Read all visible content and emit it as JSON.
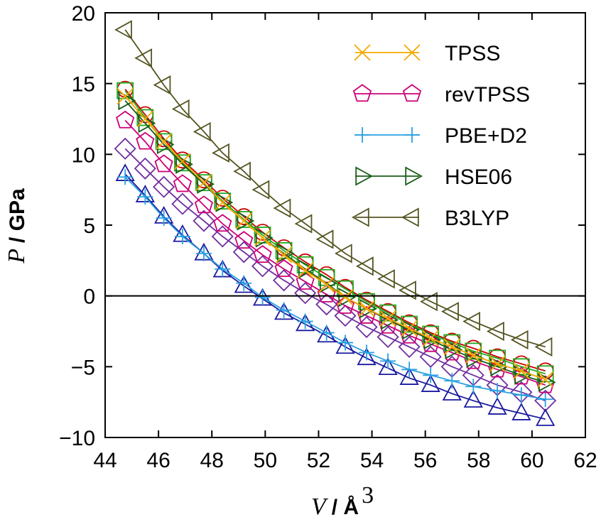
{
  "chart_data": {
    "type": "line",
    "title": "",
    "xlabel": {
      "var": "V",
      "unit": "/ Å",
      "sup": "3"
    },
    "ylabel": {
      "var": "P",
      "unit": "/ GPa"
    },
    "xlim": [
      44,
      62
    ],
    "ylim": [
      -10,
      20
    ],
    "xticks": [
      44,
      46,
      48,
      50,
      52,
      54,
      56,
      58,
      60,
      62
    ],
    "yticks": [
      -10,
      -5,
      0,
      5,
      10,
      15,
      20
    ],
    "xtick_labels": [
      "44",
      "46",
      "48",
      "50",
      "52",
      "54",
      "56",
      "58",
      "60",
      "62"
    ],
    "ytick_labels": [
      "−10",
      "−5",
      "0",
      "5",
      "10",
      "15",
      "20"
    ],
    "zero_line": true,
    "legend_position": "top-right",
    "x": [
      44.75,
      45.5,
      46.2,
      46.9,
      47.7,
      48.4,
      49.2,
      49.9,
      50.7,
      51.5,
      52.3,
      53.0,
      53.8,
      54.6,
      55.4,
      56.2,
      57.0,
      57.8,
      58.7,
      59.6,
      60.5
    ],
    "series": [
      {
        "name": "TPSS",
        "marker": "x",
        "color": "#f5a800",
        "values": [
          14.1,
          12.5,
          10.9,
          9.5,
          8.0,
          6.6,
          5.3,
          4.1,
          2.9,
          1.8,
          0.8,
          -0.1,
          -0.9,
          -1.6,
          -2.3,
          -3.0,
          -3.6,
          -4.2,
          -4.8,
          -5.3,
          -5.9
        ],
        "in_legend": true
      },
      {
        "name": "revTPSS",
        "marker": "pentagon",
        "color": "#cc0077",
        "values": [
          12.4,
          10.9,
          9.3,
          7.9,
          6.4,
          5.1,
          3.9,
          2.9,
          1.9,
          1.0,
          0.1,
          -0.7,
          -1.4,
          -2.1,
          -2.8,
          -3.4,
          -4.0,
          -4.6,
          -5.2,
          -5.7,
          -6.3
        ],
        "in_legend": true
      },
      {
        "name": "PBE+D2",
        "marker": "plus",
        "color": "#2aa0e0",
        "values": [
          8.4,
          7.0,
          5.5,
          4.2,
          3.0,
          1.9,
          0.9,
          -0.1,
          -1.0,
          -1.8,
          -2.6,
          -3.3,
          -4.0,
          -4.6,
          -5.2,
          -5.6,
          -6.0,
          -6.4,
          -6.7,
          -7.0,
          -7.3
        ],
        "in_legend": true
      },
      {
        "name": "HSE06",
        "marker": "triangle-right",
        "color": "#1a5c1a",
        "values": [
          13.8,
          12.2,
          10.7,
          9.3,
          7.9,
          6.6,
          5.3,
          4.1,
          3.0,
          1.9,
          0.9,
          -0.1,
          -0.9,
          -1.7,
          -2.4,
          -3.1,
          -3.8,
          -4.4,
          -5.0,
          -5.6,
          -6.1
        ],
        "in_legend": true
      },
      {
        "name": "B3LYP",
        "marker": "triangle-left",
        "color": "#555522",
        "values": [
          18.8,
          16.8,
          14.9,
          13.2,
          11.6,
          10.1,
          8.8,
          7.5,
          6.2,
          5.1,
          4.0,
          3.0,
          2.1,
          1.2,
          0.4,
          -0.4,
          -1.1,
          -1.8,
          -2.5,
          -3.1,
          -3.6
        ],
        "in_legend": true
      },
      {
        "name": "",
        "marker": "circle",
        "color": "#cc0000",
        "values": [
          14.6,
          12.8,
          11.1,
          9.6,
          8.2,
          6.9,
          5.6,
          4.5,
          3.4,
          2.4,
          1.5,
          0.6,
          -0.3,
          -1.1,
          -1.9,
          -2.6,
          -3.2,
          -3.7,
          -4.3,
          -4.8,
          -5.3
        ],
        "in_legend": false
      },
      {
        "name": "",
        "marker": "square",
        "color": "#22aa22",
        "values": [
          14.5,
          12.6,
          10.9,
          9.4,
          8.0,
          6.7,
          5.4,
          4.3,
          3.2,
          2.2,
          1.3,
          0.5,
          -0.4,
          -1.2,
          -2.0,
          -2.7,
          -3.3,
          -3.9,
          -4.4,
          -5.0,
          -5.5
        ],
        "in_legend": false
      },
      {
        "name": "",
        "marker": "diamond",
        "color": "#7030a0",
        "values": [
          10.4,
          9.0,
          7.7,
          6.5,
          5.3,
          4.2,
          3.1,
          2.1,
          1.1,
          0.2,
          -0.6,
          -1.4,
          -2.2,
          -2.9,
          -3.6,
          -4.3,
          -5.0,
          -5.6,
          -6.3,
          -6.8,
          -7.4
        ],
        "in_legend": false
      },
      {
        "name": "",
        "marker": "triangle-up",
        "color": "#1a1aa0",
        "values": [
          8.6,
          7.1,
          5.6,
          4.3,
          3.0,
          1.8,
          0.7,
          -0.2,
          -1.2,
          -2.0,
          -2.8,
          -3.6,
          -4.4,
          -5.1,
          -5.8,
          -6.3,
          -6.9,
          -7.4,
          -7.9,
          -8.3,
          -8.7
        ],
        "in_legend": false
      }
    ]
  }
}
